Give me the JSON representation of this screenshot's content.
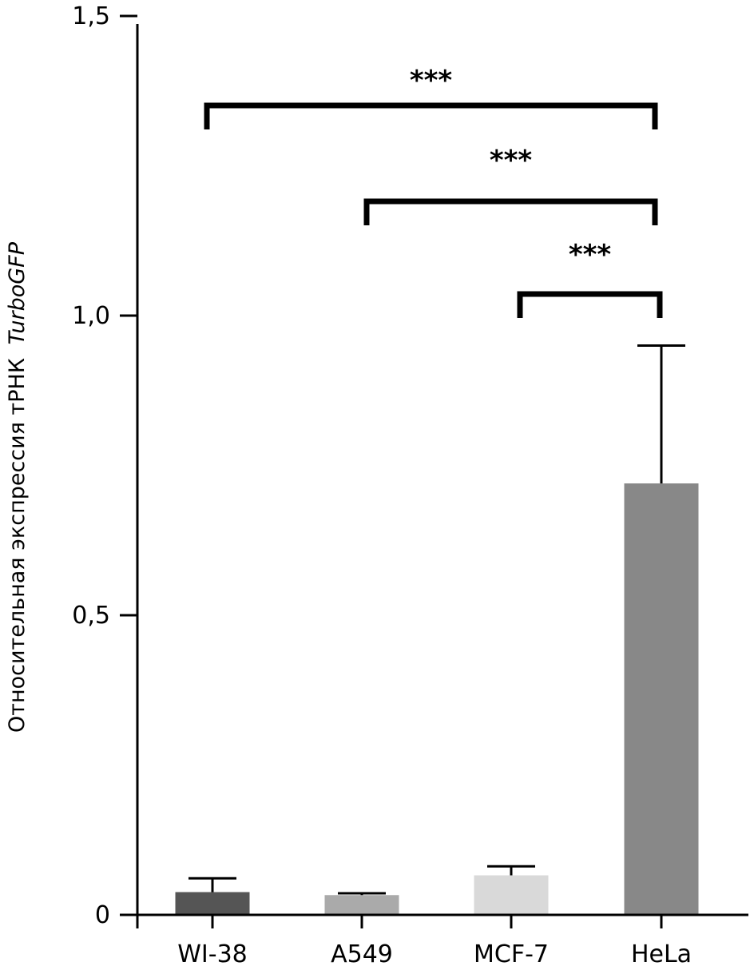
{
  "chart_data": {
    "type": "bar",
    "title": "",
    "xlabel": "",
    "ylabel": "Относительная экспрессия тРНК",
    "ylabel_italic_part": "TurboGFP",
    "ylim": [
      0,
      1.5
    ],
    "yticks": [
      0,
      0.5,
      1.0,
      1.5
    ],
    "ytick_labels": [
      "0",
      "0,5",
      "1,0",
      "1,5"
    ],
    "grid": false,
    "categories": [
      "WI-38",
      "A549",
      "MCF-7",
      "HeLa"
    ],
    "values": [
      0.038,
      0.033,
      0.066,
      0.72
    ],
    "error_upper": [
      0.061,
      0.036,
      0.081,
      0.95
    ],
    "colors": [
      "#555555",
      "#aaaaaa",
      "#d9d9d9",
      "#888888"
    ],
    "significance": [
      {
        "from": 0,
        "to": 3,
        "label": "***"
      },
      {
        "from": 1,
        "to": 3,
        "label": "***"
      },
      {
        "from": 2,
        "to": 3,
        "label": "***"
      }
    ]
  }
}
